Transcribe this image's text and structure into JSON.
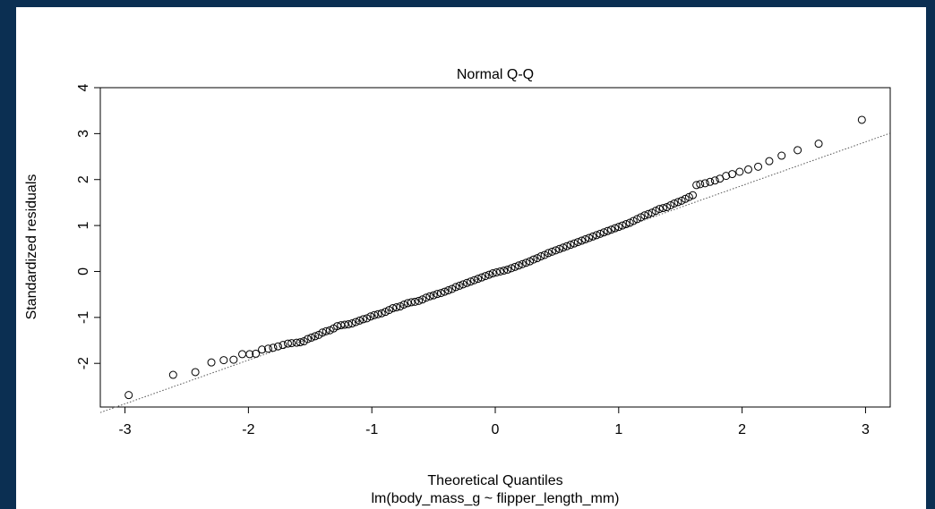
{
  "chart_data": {
    "type": "scatter",
    "title": "Normal Q-Q",
    "xlabel": "Theoretical Quantiles",
    "subtitle": "lm(body_mass_g ~ flipper_length_mm)",
    "ylabel": "Standardized residuals",
    "xlim": [
      -3.2,
      3.2
    ],
    "ylim": [
      -2.95,
      4.0
    ],
    "xticks": [
      -3,
      -2,
      -1,
      0,
      1,
      2,
      3
    ],
    "xtick_labels": [
      "-3",
      "-2",
      "-1",
      "0",
      "1",
      "2",
      "3"
    ],
    "yticks": [
      -2,
      -1,
      0,
      1,
      2,
      3,
      4
    ],
    "ytick_labels": [
      "-2",
      "-1",
      "0",
      "1",
      "2",
      "3",
      "4"
    ],
    "grid": false,
    "reference_line": {
      "intercept": -0.03,
      "slope": 0.95,
      "style": "dotted"
    },
    "points": [
      [
        -2.97,
        -2.69
      ],
      [
        -2.61,
        -2.25
      ],
      [
        -2.43,
        -2.19
      ],
      [
        -2.3,
        -1.98
      ],
      [
        -2.2,
        -1.93
      ],
      [
        -2.12,
        -1.92
      ],
      [
        -2.05,
        -1.8
      ],
      [
        -1.99,
        -1.8
      ],
      [
        -1.94,
        -1.79
      ],
      [
        -1.89,
        -1.7
      ],
      [
        -1.84,
        -1.68
      ],
      [
        -1.8,
        -1.66
      ],
      [
        -1.76,
        -1.63
      ],
      [
        -1.72,
        -1.6
      ],
      [
        -1.68,
        -1.57
      ],
      [
        -1.65,
        -1.56
      ],
      [
        -1.61,
        -1.55
      ],
      [
        -1.58,
        -1.54
      ],
      [
        -1.55,
        -1.52
      ],
      [
        -1.52,
        -1.47
      ],
      [
        -1.49,
        -1.44
      ],
      [
        -1.46,
        -1.41
      ],
      [
        -1.43,
        -1.38
      ],
      [
        -1.4,
        -1.33
      ],
      [
        -1.37,
        -1.3
      ],
      [
        -1.34,
        -1.28
      ],
      [
        -1.31,
        -1.24
      ],
      [
        -1.28,
        -1.19
      ],
      [
        -1.25,
        -1.17
      ],
      [
        -1.22,
        -1.16
      ],
      [
        -1.19,
        -1.15
      ],
      [
        -1.16,
        -1.13
      ],
      [
        -1.13,
        -1.1
      ],
      [
        -1.1,
        -1.07
      ],
      [
        -1.07,
        -1.04
      ],
      [
        -1.04,
        -1.02
      ],
      [
        -1.01,
        -0.98
      ],
      [
        -0.98,
        -0.95
      ],
      [
        -0.95,
        -0.93
      ],
      [
        -0.92,
        -0.91
      ],
      [
        -0.89,
        -0.88
      ],
      [
        -0.86,
        -0.84
      ],
      [
        -0.83,
        -0.8
      ],
      [
        -0.8,
        -0.78
      ],
      [
        -0.77,
        -0.76
      ],
      [
        -0.74,
        -0.72
      ],
      [
        -0.71,
        -0.69
      ],
      [
        -0.68,
        -0.67
      ],
      [
        -0.65,
        -0.66
      ],
      [
        -0.62,
        -0.64
      ],
      [
        -0.59,
        -0.61
      ],
      [
        -0.56,
        -0.57
      ],
      [
        -0.53,
        -0.54
      ],
      [
        -0.5,
        -0.52
      ],
      [
        -0.47,
        -0.49
      ],
      [
        -0.44,
        -0.47
      ],
      [
        -0.41,
        -0.44
      ],
      [
        -0.38,
        -0.41
      ],
      [
        -0.35,
        -0.38
      ],
      [
        -0.32,
        -0.34
      ],
      [
        -0.29,
        -0.31
      ],
      [
        -0.26,
        -0.28
      ],
      [
        -0.23,
        -0.25
      ],
      [
        -0.2,
        -0.22
      ],
      [
        -0.17,
        -0.19
      ],
      [
        -0.14,
        -0.16
      ],
      [
        -0.11,
        -0.13
      ],
      [
        -0.08,
        -0.1
      ],
      [
        -0.05,
        -0.07
      ],
      [
        -0.02,
        -0.04
      ],
      [
        0.01,
        -0.02
      ],
      [
        0.04,
        0.0
      ],
      [
        0.07,
        0.02
      ],
      [
        0.1,
        0.04
      ],
      [
        0.13,
        0.07
      ],
      [
        0.16,
        0.1
      ],
      [
        0.19,
        0.13
      ],
      [
        0.22,
        0.16
      ],
      [
        0.25,
        0.19
      ],
      [
        0.28,
        0.22
      ],
      [
        0.31,
        0.26
      ],
      [
        0.34,
        0.29
      ],
      [
        0.37,
        0.33
      ],
      [
        0.4,
        0.36
      ],
      [
        0.43,
        0.4
      ],
      [
        0.46,
        0.43
      ],
      [
        0.49,
        0.46
      ],
      [
        0.52,
        0.49
      ],
      [
        0.55,
        0.52
      ],
      [
        0.58,
        0.55
      ],
      [
        0.61,
        0.58
      ],
      [
        0.64,
        0.61
      ],
      [
        0.67,
        0.64
      ],
      [
        0.7,
        0.67
      ],
      [
        0.73,
        0.7
      ],
      [
        0.76,
        0.73
      ],
      [
        0.79,
        0.76
      ],
      [
        0.82,
        0.79
      ],
      [
        0.85,
        0.82
      ],
      [
        0.88,
        0.85
      ],
      [
        0.91,
        0.88
      ],
      [
        0.94,
        0.91
      ],
      [
        0.97,
        0.94
      ],
      [
        1.0,
        0.97
      ],
      [
        1.03,
        1.0
      ],
      [
        1.06,
        1.03
      ],
      [
        1.09,
        1.06
      ],
      [
        1.12,
        1.1
      ],
      [
        1.15,
        1.14
      ],
      [
        1.18,
        1.18
      ],
      [
        1.21,
        1.22
      ],
      [
        1.24,
        1.25
      ],
      [
        1.27,
        1.28
      ],
      [
        1.3,
        1.32
      ],
      [
        1.33,
        1.36
      ],
      [
        1.36,
        1.38
      ],
      [
        1.39,
        1.4
      ],
      [
        1.42,
        1.44
      ],
      [
        1.45,
        1.48
      ],
      [
        1.48,
        1.51
      ],
      [
        1.51,
        1.54
      ],
      [
        1.54,
        1.58
      ],
      [
        1.57,
        1.62
      ],
      [
        1.6,
        1.66
      ],
      [
        1.63,
        1.88
      ],
      [
        1.66,
        1.9
      ],
      [
        1.7,
        1.92
      ],
      [
        1.74,
        1.95
      ],
      [
        1.78,
        1.98
      ],
      [
        1.82,
        2.02
      ],
      [
        1.87,
        2.08
      ],
      [
        1.92,
        2.12
      ],
      [
        1.98,
        2.17
      ],
      [
        2.05,
        2.22
      ],
      [
        2.13,
        2.28
      ],
      [
        2.22,
        2.4
      ],
      [
        2.32,
        2.52
      ],
      [
        2.45,
        2.64
      ],
      [
        2.62,
        2.78
      ],
      [
        2.97,
        3.3
      ]
    ]
  }
}
